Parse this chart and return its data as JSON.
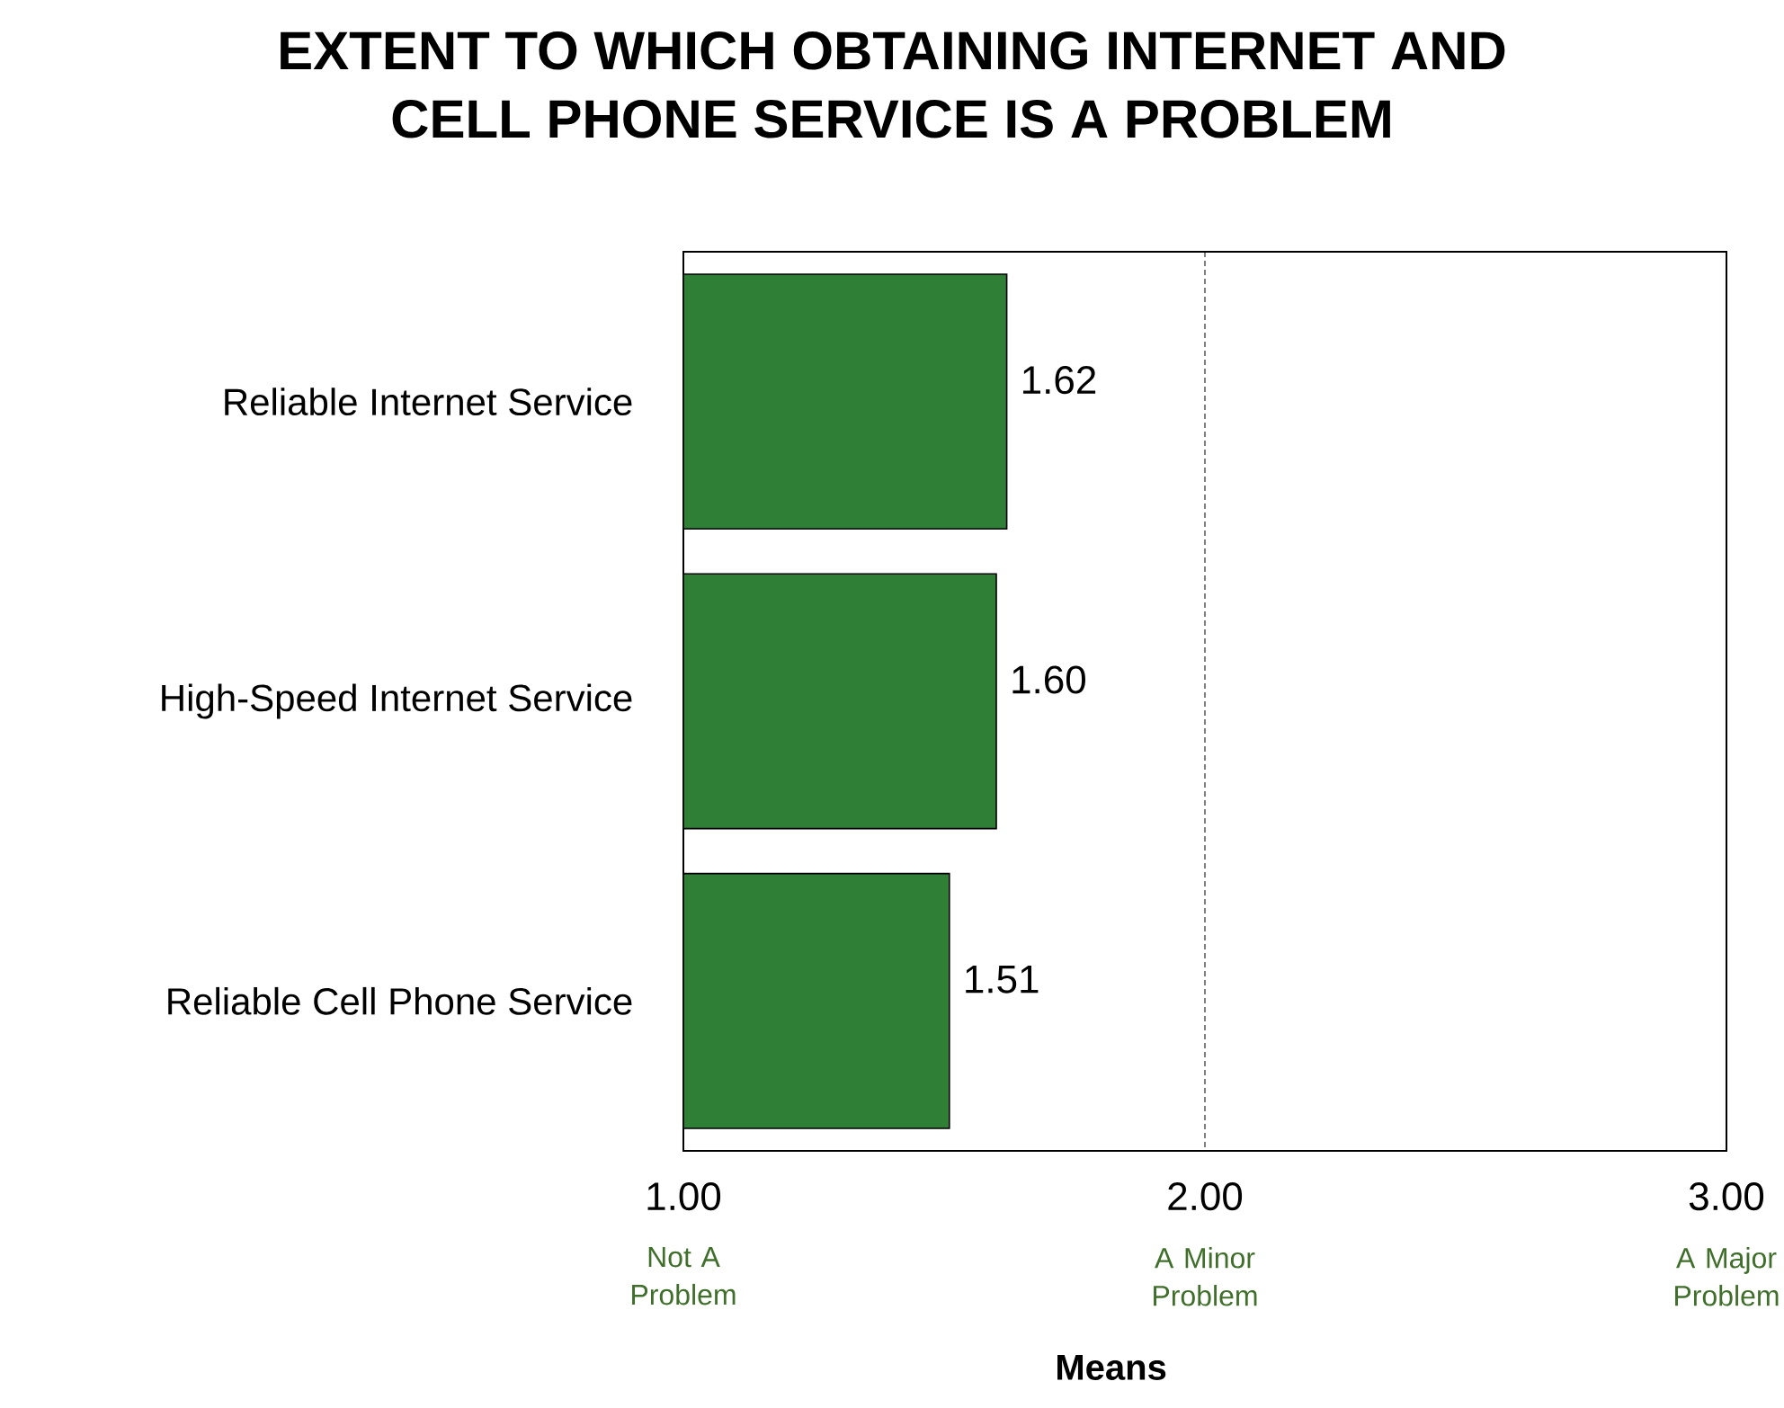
{
  "chart_data": {
    "type": "bar",
    "orientation": "horizontal",
    "title": "EXTENT TO WHICH OBTAINING INTERNET AND CELL PHONE SERVICE IS A PROBLEM",
    "xlabel": "Means",
    "categories": [
      "Reliable Internet Service",
      "High-Speed Internet Service",
      "Reliable Cell Phone Service"
    ],
    "values": [
      1.62,
      1.6,
      1.51
    ],
    "value_labels": [
      "1.62",
      "1.60",
      "1.51"
    ],
    "color": "#2f7f36",
    "xlim": [
      1,
      3
    ],
    "xticks": [
      {
        "value": 1,
        "label": "1.00"
      },
      {
        "value": 2,
        "label": "2.00"
      },
      {
        "value": 3,
        "label": "3.00"
      }
    ],
    "grid": "x",
    "annotations": [
      "Not A Problem",
      "A Minor Problem",
      "A Major Problem"
    ]
  }
}
